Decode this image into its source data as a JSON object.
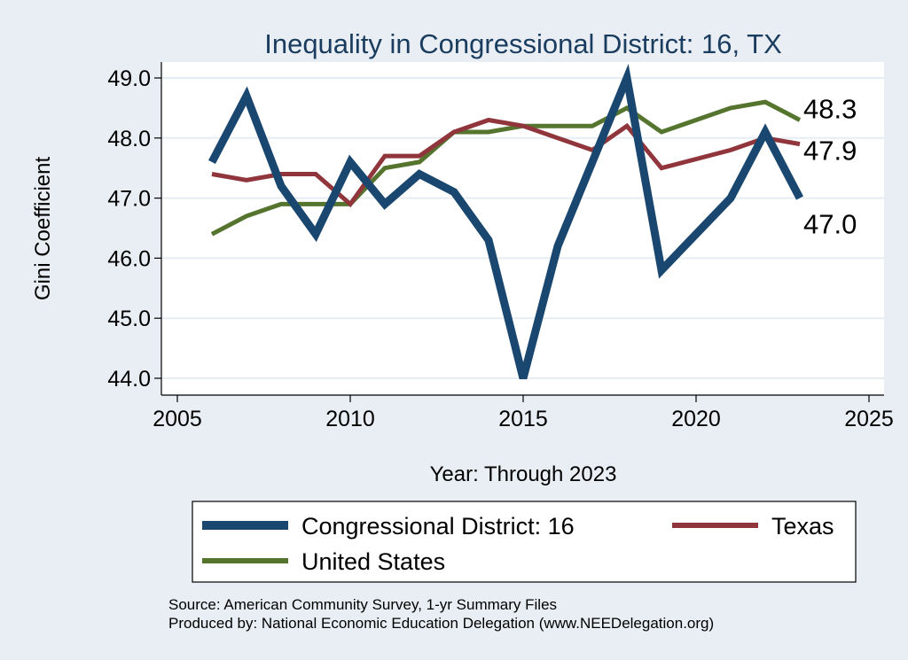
{
  "chart_data": {
    "type": "line",
    "title": "Inequality in Congressional District:  16, TX",
    "xlabel": "Year: Through 2023",
    "ylabel": "Gini Coefficient",
    "xlim": [
      2005,
      2025
    ],
    "ylim": [
      44.0,
      49.0
    ],
    "xticks": [
      "2005",
      "2010",
      "2015",
      "2020",
      "2025"
    ],
    "yticks": [
      "44.0",
      "45.0",
      "46.0",
      "47.0",
      "48.0",
      "49.0"
    ],
    "grid": true,
    "legend_position": "bottom",
    "series": [
      {
        "name": "Congressional District:  16",
        "color": "#1a476f",
        "x": [
          2006,
          2007,
          2008,
          2009,
          2010,
          2011,
          2012,
          2013,
          2014,
          2015,
          2016,
          2017,
          2018,
          2019,
          2021,
          2022,
          2023
        ],
        "y": [
          47.6,
          48.7,
          47.2,
          46.4,
          47.6,
          46.9,
          47.4,
          47.1,
          46.3,
          44.0,
          46.2,
          47.6,
          49.0,
          45.8,
          47.0,
          48.1,
          47.0
        ],
        "end_label": "47.0"
      },
      {
        "name": "Texas",
        "color": "#90353b",
        "x": [
          2006,
          2007,
          2008,
          2009,
          2010,
          2011,
          2012,
          2013,
          2014,
          2015,
          2016,
          2017,
          2018,
          2019,
          2021,
          2022,
          2023
        ],
        "y": [
          47.4,
          47.3,
          47.4,
          47.4,
          46.9,
          47.7,
          47.7,
          48.1,
          48.3,
          48.2,
          48.0,
          47.8,
          48.2,
          47.5,
          47.8,
          48.0,
          47.9
        ],
        "end_label": "47.9"
      },
      {
        "name": "United States",
        "color": "#55752f",
        "x": [
          2006,
          2007,
          2008,
          2009,
          2010,
          2011,
          2012,
          2013,
          2014,
          2015,
          2016,
          2017,
          2018,
          2019,
          2021,
          2022,
          2023
        ],
        "y": [
          46.4,
          46.7,
          46.9,
          46.9,
          46.9,
          47.5,
          47.6,
          48.1,
          48.1,
          48.2,
          48.2,
          48.2,
          48.5,
          48.1,
          48.5,
          48.6,
          48.3
        ],
        "end_label": "48.3"
      }
    ],
    "source_lines": [
      "Source: American Community Survey, 1-yr Summary Files",
      "Produced by: National Economic Education Delegation (www.NEEDelegation.org)"
    ]
  }
}
